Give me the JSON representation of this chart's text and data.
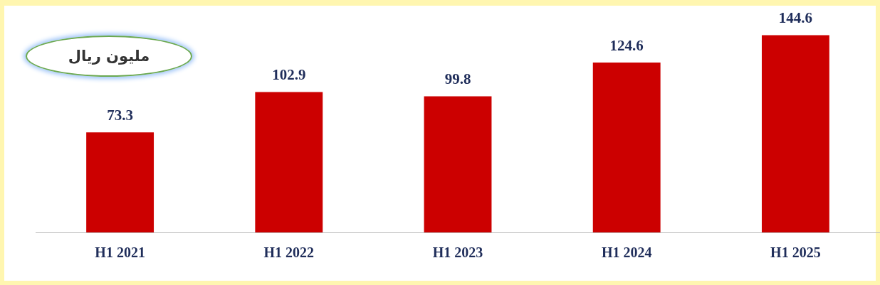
{
  "chart_data": {
    "type": "bar",
    "annotations": [
      "ملیون ریال"
    ],
    "categories": [
      "H1 2021",
      "H1 2022",
      "H1 2023",
      "H1 2024",
      "H1 2025"
    ],
    "values": [
      73.3,
      102.9,
      99.8,
      124.6,
      144.6
    ],
    "color": "#cc0000",
    "tick_labels": "x",
    "grid": false,
    "legend": false,
    "data_labels": true
  }
}
